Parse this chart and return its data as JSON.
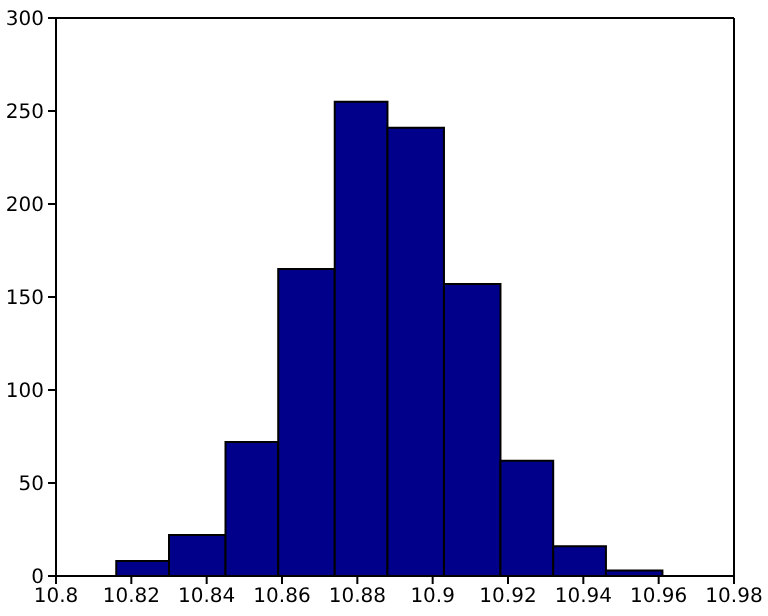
{
  "chart_data": {
    "type": "histogram",
    "color": "#00008b",
    "bins": [
      10.816,
      10.83,
      10.845,
      10.859,
      10.874,
      10.888,
      10.903,
      10.918,
      10.932,
      10.946,
      10.961
    ],
    "values": [
      8,
      22,
      72,
      165,
      255,
      241,
      157,
      62,
      16,
      3
    ],
    "xlim": [
      10.8,
      10.98
    ],
    "xticks": [
      10.8,
      10.82,
      10.84,
      10.86,
      10.88,
      10.9,
      10.92,
      10.94,
      10.96,
      10.98
    ],
    "ylim": [
      0,
      300
    ],
    "yticks": [
      0,
      50,
      100,
      150,
      200,
      250,
      300
    ]
  }
}
